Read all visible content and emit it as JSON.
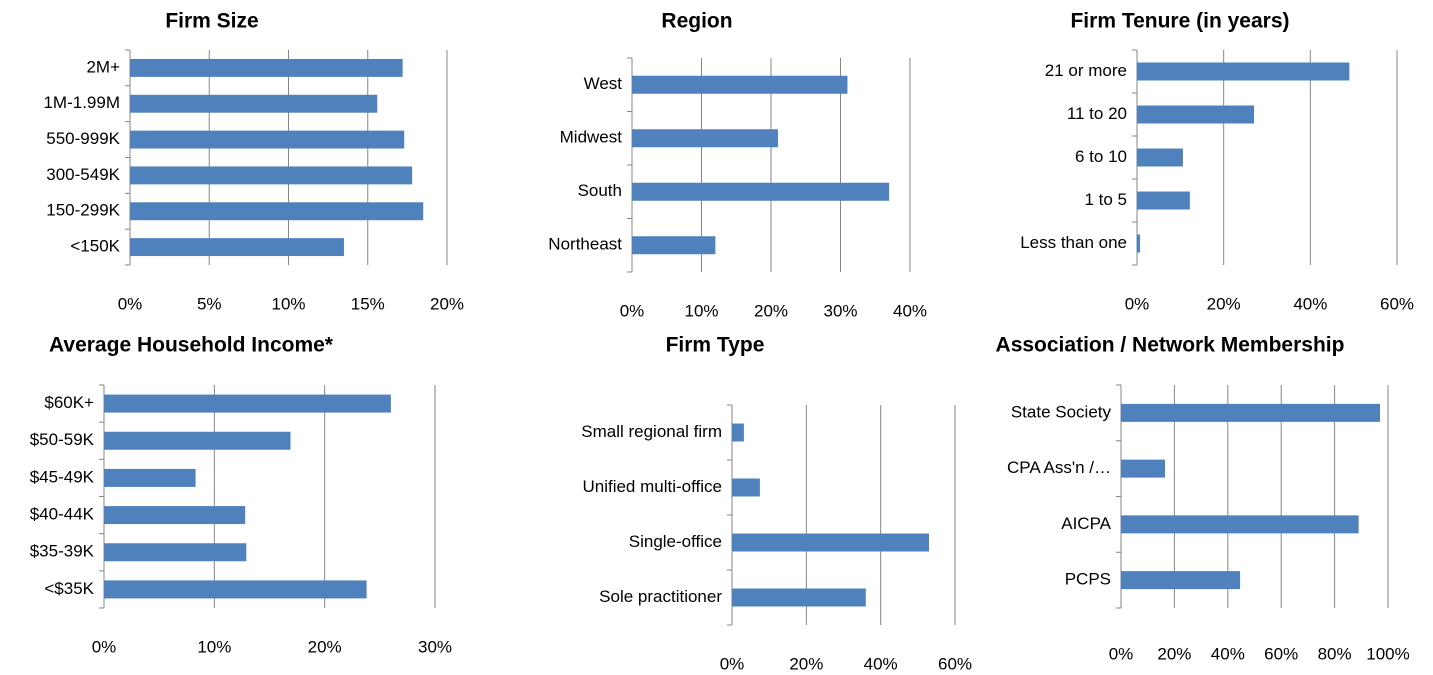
{
  "chart_data": [
    {
      "type": "bar",
      "title": "Firm Size",
      "categories": [
        "2M+",
        "1M-1.99M",
        "550-999K",
        "300-549K",
        "150-299K",
        "<150K"
      ],
      "values": [
        17.2,
        15.6,
        17.3,
        17.8,
        18.5,
        13.5
      ],
      "color": "#4f81bd",
      "xlim": [
        0,
        20
      ],
      "xticks": [
        {
          "value": 0,
          "label": "0%"
        },
        {
          "value": 5,
          "label": "5%"
        },
        {
          "value": 10,
          "label": "10%"
        },
        {
          "value": 15,
          "label": "15%"
        },
        {
          "value": 20,
          "label": "20%"
        }
      ],
      "grid": true
    },
    {
      "type": "bar",
      "title": "Region",
      "categories": [
        "West",
        "Midwest",
        "South",
        "Northeast"
      ],
      "values": [
        31,
        21,
        37,
        12
      ],
      "color": "#4f81bd",
      "xlim": [
        0,
        40
      ],
      "xticks": [
        {
          "value": 0,
          "label": "0%"
        },
        {
          "value": 10,
          "label": "10%"
        },
        {
          "value": 20,
          "label": "20%"
        },
        {
          "value": 30,
          "label": "30%"
        },
        {
          "value": 40,
          "label": "40%"
        }
      ],
      "grid": true
    },
    {
      "type": "bar",
      "title": "Firm Tenure (in years)",
      "categories": [
        "21 or more",
        "11 to 20",
        "6 to 10",
        "1 to 5",
        "Less than one"
      ],
      "values": [
        49,
        27,
        10.6,
        12.2,
        0.7
      ],
      "color": "#4f81bd",
      "xlim": [
        0,
        60
      ],
      "xticks": [
        {
          "value": 0,
          "label": "0%"
        },
        {
          "value": 20,
          "label": "20%"
        },
        {
          "value": 40,
          "label": "40%"
        },
        {
          "value": 60,
          "label": "60%"
        }
      ],
      "grid": true
    },
    {
      "type": "bar",
      "title": "Average Household Income*",
      "categories": [
        "$60K+",
        "$50-59K",
        "$45-49K",
        "$40-44K",
        "$35-39K",
        "<$35K"
      ],
      "values": [
        26,
        16.9,
        8.3,
        12.8,
        12.9,
        23.8
      ],
      "color": "#4f81bd",
      "xlim": [
        0,
        30
      ],
      "xticks": [
        {
          "value": 0,
          "label": "0%"
        },
        {
          "value": 10,
          "label": "10%"
        },
        {
          "value": 20,
          "label": "20%"
        },
        {
          "value": 30,
          "label": "30%"
        }
      ],
      "grid": true
    },
    {
      "type": "bar",
      "title": "Firm Type",
      "categories": [
        "Small regional firm",
        "Unified multi-office",
        "Single-office",
        "Sole practitioner"
      ],
      "values": [
        3.2,
        7.5,
        53,
        36
      ],
      "color": "#4f81bd",
      "xlim": [
        0,
        60
      ],
      "xticks": [
        {
          "value": 0,
          "label": "0%"
        },
        {
          "value": 20,
          "label": "20%"
        },
        {
          "value": 40,
          "label": "40%"
        },
        {
          "value": 60,
          "label": "60%"
        }
      ],
      "grid": true
    },
    {
      "type": "bar",
      "title": "Association / Network Membership",
      "categories": [
        "State Society",
        "CPA Ass'n /…",
        "AICPA",
        "PCPS"
      ],
      "values": [
        97,
        16.5,
        89,
        44.6
      ],
      "color": "#4f81bd",
      "xlim": [
        0,
        100
      ],
      "xticks": [
        {
          "value": 0,
          "label": "0%"
        },
        {
          "value": 20,
          "label": "20%"
        },
        {
          "value": 40,
          "label": "40%"
        },
        {
          "value": 60,
          "label": "60%"
        },
        {
          "value": 80,
          "label": "80%"
        },
        {
          "value": 100,
          "label": "100%"
        }
      ],
      "grid": true
    }
  ]
}
